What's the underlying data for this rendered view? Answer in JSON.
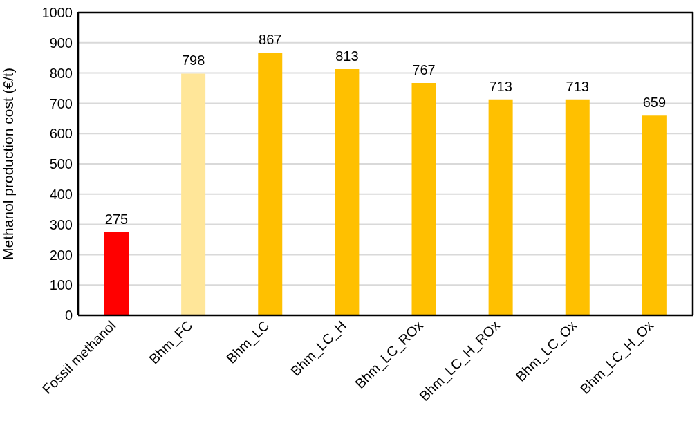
{
  "chart_data": {
    "type": "bar",
    "ylabel": "Methanol production cost (€/t)",
    "categories": [
      "Fossil methanol",
      "Bhm_FC",
      "Bhm_LC",
      "Bhm_LC_H",
      "Bhm_LC_ROx",
      "Bhm_LC_H_ROx",
      "Bhm_LC_Ox",
      "Bhm_LC_H_Ox"
    ],
    "values": [
      275,
      798,
      867,
      813,
      767,
      713,
      713,
      659
    ],
    "colors": [
      "#ff0000",
      "#ffe699",
      "#ffc000",
      "#ffc000",
      "#ffc000",
      "#ffc000",
      "#ffc000",
      "#ffc000"
    ],
    "ylim": [
      0,
      1000
    ],
    "yticks": [
      0,
      100,
      200,
      300,
      400,
      500,
      600,
      700,
      800,
      900,
      1000
    ],
    "grid": "y",
    "data_labels": true
  }
}
